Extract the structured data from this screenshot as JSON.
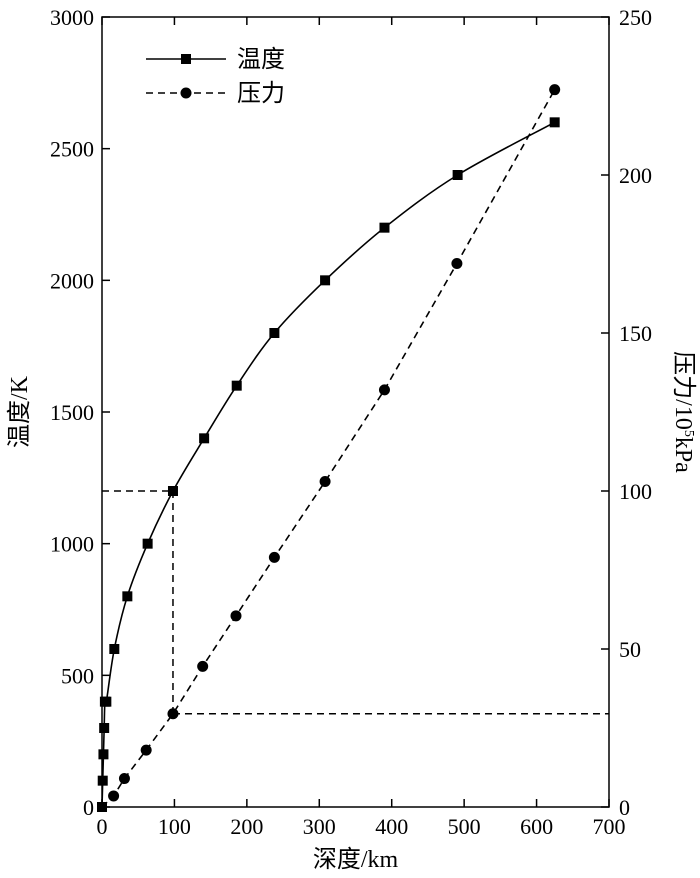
{
  "chart_data": {
    "type": "line",
    "title": "",
    "xlabel": "深度/km",
    "ylabel_left": "温度/K",
    "ylabel_right": {
      "base": "压力/10",
      "sup": "5",
      "unit": "kPa"
    },
    "xlim": [
      0,
      700
    ],
    "ylim_left": [
      0,
      3000
    ],
    "ylim_right": [
      0,
      250
    ],
    "xticks": [
      0,
      100,
      200,
      300,
      400,
      500,
      600,
      700
    ],
    "yticks_left": [
      0,
      500,
      1000,
      1500,
      2000,
      2500,
      3000
    ],
    "yticks_right": [
      0,
      50,
      100,
      150,
      200,
      250
    ],
    "grid": false,
    "legend_position": "top-left",
    "series": [
      {
        "name": "温度",
        "axis": "left",
        "line_style": "solid",
        "marker": "square",
        "color": "#000000",
        "x": [
          0,
          1,
          2,
          3,
          4,
          6,
          17,
          35,
          63,
          98,
          141,
          186,
          238,
          308,
          390,
          491,
          625
        ],
        "y": [
          0,
          100,
          200,
          300,
          400,
          400,
          600,
          800,
          1000,
          1200,
          1400,
          1600,
          1800,
          2000,
          2200,
          2400,
          2600
        ]
      },
      {
        "name": "压力",
        "axis": "right",
        "line_style": "dashed",
        "marker": "circle",
        "color": "#000000",
        "x": [
          16,
          31,
          61,
          98,
          139,
          185,
          238,
          308,
          390,
          490,
          625
        ],
        "y": [
          3.5,
          9,
          18,
          29.5,
          44.5,
          60.5,
          79,
          103,
          132,
          172,
          227
        ]
      }
    ],
    "annotations": {
      "guide_depth": 98,
      "guide_temperature": 1200,
      "guide_pressure": 29.5
    }
  }
}
